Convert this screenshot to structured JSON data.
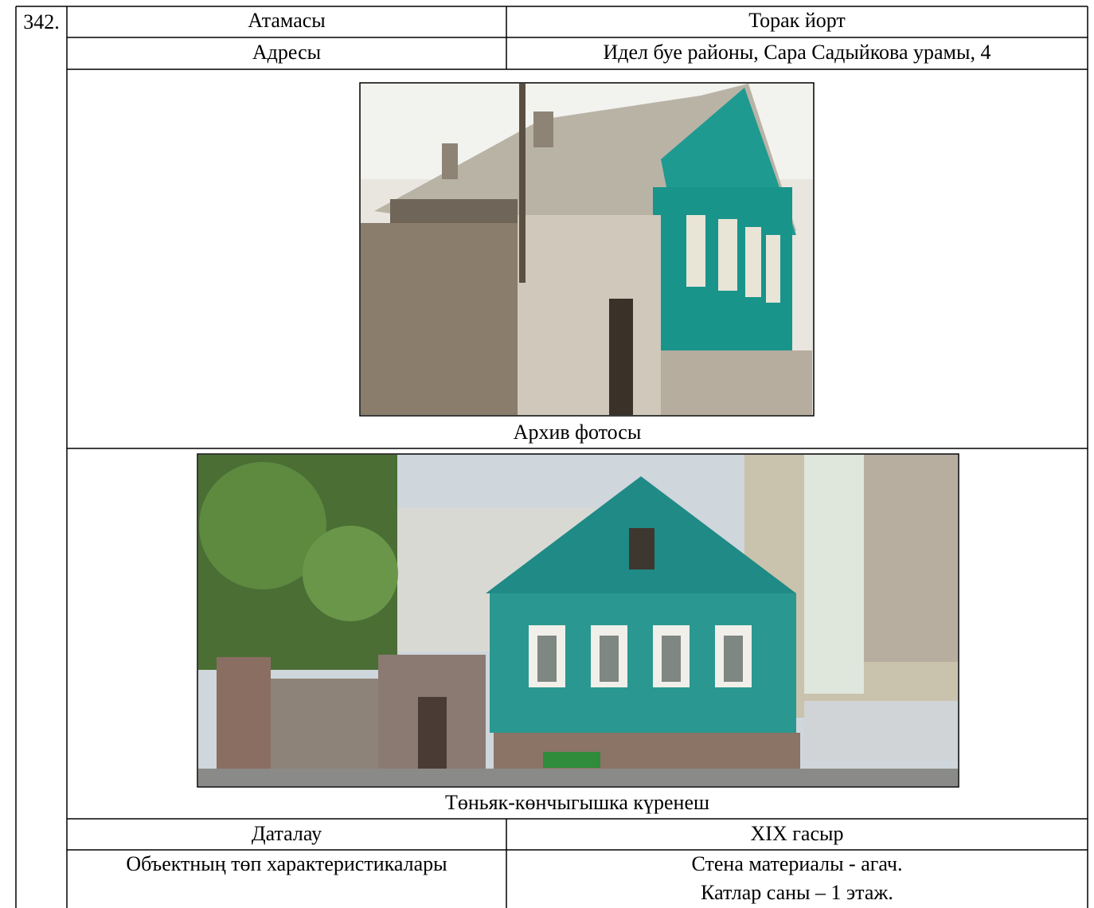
{
  "number": "342.",
  "table": {
    "rows": [
      [
        "Атамасы",
        "Торак йорт"
      ],
      [
        "Адресы",
        "Идел буе районы, Сара Садыйкова урамы, 4"
      ]
    ]
  },
  "photos": [
    {
      "caption": "Архив фотосы"
    },
    {
      "caption": "Төньяк-көнчыгышка күренеш"
    }
  ],
  "details": {
    "rows": [
      [
        "Даталау",
        "XIX гасыр"
      ],
      [
        "Объектның төп характеристикалары",
        [
          "Стена материалы - агач.",
          "Катлар саны – 1 этаж."
        ]
      ]
    ]
  }
}
